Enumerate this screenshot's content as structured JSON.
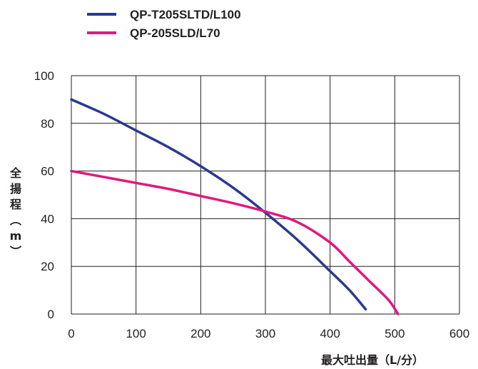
{
  "chart_data": {
    "type": "line",
    "title": "",
    "xlabel": "最大吐出量（L/分）",
    "ylabel": "全揚程（m）",
    "xlim": [
      0,
      600
    ],
    "ylim": [
      0,
      100
    ],
    "x_ticks": [
      "0",
      "100",
      "200",
      "300",
      "400",
      "500",
      "600"
    ],
    "y_ticks": [
      "0",
      "20",
      "40",
      "60",
      "80",
      "100"
    ],
    "grid": true,
    "legend_position": "top-left",
    "series": [
      {
        "name": "QP-T205SLTD/L100",
        "color": "#2b3990",
        "x": [
          0,
          50,
          100,
          150,
          200,
          250,
          300,
          350,
          400,
          430,
          455
        ],
        "y": [
          90,
          84,
          77,
          70,
          62,
          53,
          42.5,
          31,
          18,
          10,
          2
        ]
      },
      {
        "name": "QP-205SLD/L70",
        "color": "#e0197d",
        "x": [
          0,
          50,
          100,
          150,
          200,
          250,
          300,
          350,
          400,
          430,
          460,
          490,
          505
        ],
        "y": [
          60,
          57.5,
          55,
          52.5,
          49.5,
          46.5,
          43,
          38.5,
          30,
          22,
          14,
          6,
          0
        ]
      }
    ]
  }
}
